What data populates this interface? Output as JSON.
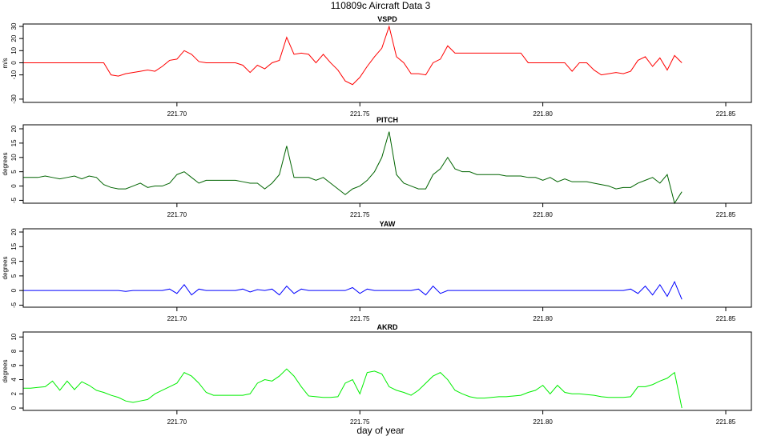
{
  "title": "110809c   Aircraft Data 3",
  "xlabel": "day of year",
  "chart_data": [
    {
      "type": "line",
      "title": "VSPD",
      "ylabel": "m/s",
      "color": "#ff0000",
      "x": [
        221.658,
        221.66,
        221.662,
        221.664,
        221.666,
        221.668,
        221.67,
        221.672,
        221.674,
        221.676,
        221.678,
        221.68,
        221.682,
        221.684,
        221.686,
        221.688,
        221.69,
        221.692,
        221.694,
        221.696,
        221.698,
        221.7,
        221.702,
        221.704,
        221.706,
        221.708,
        221.71,
        221.712,
        221.714,
        221.716,
        221.718,
        221.72,
        221.722,
        221.724,
        221.726,
        221.728,
        221.73,
        221.732,
        221.734,
        221.736,
        221.738,
        221.74,
        221.742,
        221.744,
        221.746,
        221.748,
        221.75,
        221.752,
        221.754,
        221.756,
        221.758,
        221.76,
        221.762,
        221.764,
        221.766,
        221.768,
        221.77,
        221.772,
        221.774,
        221.776,
        221.778,
        221.78,
        221.782,
        221.784,
        221.786,
        221.788,
        221.79,
        221.792,
        221.794,
        221.796,
        221.798,
        221.8,
        221.802,
        221.804,
        221.806,
        221.808,
        221.81,
        221.812,
        221.814,
        221.816,
        221.818,
        221.82,
        221.822,
        221.824,
        221.826,
        221.828,
        221.83,
        221.832,
        221.834,
        221.836,
        221.838
      ],
      "values": [
        0,
        0,
        0,
        0,
        0,
        0,
        0,
        0,
        0,
        0,
        0,
        0,
        -10,
        -11,
        -9,
        -8,
        -7,
        -6,
        -7,
        -3,
        2,
        3,
        10,
        7,
        1,
        0,
        0,
        0,
        0,
        0,
        -2,
        -8,
        -2,
        -5,
        0,
        2,
        21,
        7,
        8,
        7,
        0,
        7,
        0,
        -6,
        -15,
        -18,
        -12,
        -3,
        5,
        12,
        30,
        5,
        0,
        -9,
        -9,
        -10,
        0,
        3,
        14,
        8,
        8,
        8,
        8,
        8,
        8,
        8,
        8,
        8,
        8,
        0,
        0,
        0,
        0,
        0,
        0,
        -7,
        0,
        0,
        -6,
        -10,
        -9,
        -8,
        -9,
        -7,
        2,
        5,
        -3,
        4,
        -6,
        6,
        0
      ],
      "xlim": [
        221.658,
        221.857
      ],
      "xticks": [
        {
          "value": 221.7,
          "label": "221.70"
        },
        221.75,
        {
          "value": 221.8,
          "label": "221.80"
        },
        221.85
      ],
      "ylim": [
        -32.7,
        32
      ],
      "yticks": [
        -30,
        -10,
        0,
        10,
        20,
        30
      ]
    },
    {
      "type": "line",
      "title": "PITCH",
      "ylabel": "degrees",
      "color": "#006400",
      "x": [
        221.658,
        221.66,
        221.662,
        221.664,
        221.666,
        221.668,
        221.67,
        221.672,
        221.674,
        221.676,
        221.678,
        221.68,
        221.682,
        221.684,
        221.686,
        221.688,
        221.69,
        221.692,
        221.694,
        221.696,
        221.698,
        221.7,
        221.702,
        221.704,
        221.706,
        221.708,
        221.71,
        221.712,
        221.714,
        221.716,
        221.718,
        221.72,
        221.722,
        221.724,
        221.726,
        221.728,
        221.73,
        221.732,
        221.734,
        221.736,
        221.738,
        221.74,
        221.742,
        221.744,
        221.746,
        221.748,
        221.75,
        221.752,
        221.754,
        221.756,
        221.758,
        221.76,
        221.762,
        221.764,
        221.766,
        221.768,
        221.77,
        221.772,
        221.774,
        221.776,
        221.778,
        221.78,
        221.782,
        221.784,
        221.786,
        221.788,
        221.79,
        221.792,
        221.794,
        221.796,
        221.798,
        221.8,
        221.802,
        221.804,
        221.806,
        221.808,
        221.81,
        221.812,
        221.814,
        221.816,
        221.818,
        221.82,
        221.822,
        221.824,
        221.826,
        221.828,
        221.83,
        221.832,
        221.834,
        221.836,
        221.838
      ],
      "values": [
        3,
        3,
        3,
        3.5,
        3,
        2.5,
        3,
        3.5,
        2.5,
        3.5,
        3,
        0.5,
        -0.5,
        -1,
        -1,
        0,
        1,
        -0.5,
        0,
        0,
        1,
        4,
        5,
        3,
        1,
        2,
        2,
        2,
        2,
        2,
        1.5,
        1,
        1,
        -1,
        1,
        4,
        14,
        3,
        3,
        3,
        2,
        3,
        1,
        -1,
        -3,
        -1,
        0,
        2,
        5,
        10,
        19,
        4,
        1,
        0,
        -1,
        -1,
        4,
        6,
        10,
        6,
        5,
        5,
        4,
        4,
        4,
        4,
        3.5,
        3.5,
        3.5,
        3,
        3,
        2,
        3,
        1.5,
        2.5,
        1.5,
        1.5,
        1.5,
        1,
        0.5,
        0,
        -1,
        -0.5,
        -0.5,
        1,
        2,
        3,
        1,
        4,
        -6,
        -2
      ],
      "xlim": [
        221.658,
        221.857
      ],
      "xticks": [
        {
          "value": 221.7,
          "label": "221.70"
        },
        221.75,
        {
          "value": 221.8,
          "label": "221.80"
        },
        221.85
      ],
      "ylim": [
        -6,
        21.4
      ],
      "yticks": [
        -5,
        0,
        5,
        10,
        15,
        20
      ]
    },
    {
      "type": "line",
      "title": "YAW",
      "ylabel": "degrees",
      "color": "#0000ff",
      "x": [
        221.658,
        221.66,
        221.662,
        221.664,
        221.666,
        221.668,
        221.67,
        221.672,
        221.674,
        221.676,
        221.678,
        221.68,
        221.682,
        221.684,
        221.686,
        221.688,
        221.69,
        221.692,
        221.694,
        221.696,
        221.698,
        221.7,
        221.702,
        221.704,
        221.706,
        221.708,
        221.71,
        221.712,
        221.714,
        221.716,
        221.718,
        221.72,
        221.722,
        221.724,
        221.726,
        221.728,
        221.73,
        221.732,
        221.734,
        221.736,
        221.738,
        221.74,
        221.742,
        221.744,
        221.746,
        221.748,
        221.75,
        221.752,
        221.754,
        221.756,
        221.758,
        221.76,
        221.762,
        221.764,
        221.766,
        221.768,
        221.77,
        221.772,
        221.774,
        221.776,
        221.778,
        221.78,
        221.782,
        221.784,
        221.786,
        221.788,
        221.79,
        221.792,
        221.794,
        221.796,
        221.798,
        221.8,
        221.802,
        221.804,
        221.806,
        221.808,
        221.81,
        221.812,
        221.814,
        221.816,
        221.818,
        221.82,
        221.822,
        221.824,
        221.826,
        221.828,
        221.83,
        221.832,
        221.834,
        221.836,
        221.838
      ],
      "values": [
        0,
        0,
        0,
        0,
        0,
        0,
        0,
        0,
        0,
        0,
        0,
        0,
        0,
        0,
        -0.3,
        0,
        0,
        0,
        0,
        0,
        0.5,
        -1,
        2,
        -1.5,
        0.5,
        0,
        0,
        0,
        0,
        0,
        0.5,
        -0.5,
        0.3,
        0,
        0.5,
        -1.5,
        1.5,
        -1,
        0.5,
        0,
        0,
        0,
        0,
        0,
        0,
        1,
        -1,
        0.5,
        0,
        0,
        0,
        0,
        0,
        0,
        0.5,
        -1.5,
        1.5,
        -1,
        0,
        0,
        0,
        0,
        0,
        0,
        0,
        0,
        0,
        0,
        0,
        0,
        0,
        0,
        0,
        0,
        0,
        0,
        0,
        0,
        0,
        0,
        0,
        0,
        0,
        0.5,
        -1,
        1.5,
        -1.5,
        2,
        -2,
        3,
        -3
      ],
      "xlim": [
        221.658,
        221.857
      ],
      "xticks": [
        {
          "value": 221.7,
          "label": "221.70"
        },
        221.75,
        {
          "value": 221.8,
          "label": "221.80"
        },
        221.85
      ],
      "ylim": [
        -5.7,
        21.1
      ],
      "yticks": [
        -5,
        0,
        5,
        10,
        15,
        20
      ]
    },
    {
      "type": "line",
      "title": "AKRD",
      "ylabel": "degrees",
      "color": "#00ee00",
      "x": [
        221.658,
        221.66,
        221.662,
        221.664,
        221.666,
        221.668,
        221.67,
        221.672,
        221.674,
        221.676,
        221.678,
        221.68,
        221.682,
        221.684,
        221.686,
        221.688,
        221.69,
        221.692,
        221.694,
        221.696,
        221.698,
        221.7,
        221.702,
        221.704,
        221.706,
        221.708,
        221.71,
        221.712,
        221.714,
        221.716,
        221.718,
        221.72,
        221.722,
        221.724,
        221.726,
        221.728,
        221.73,
        221.732,
        221.734,
        221.736,
        221.738,
        221.74,
        221.742,
        221.744,
        221.746,
        221.748,
        221.75,
        221.752,
        221.754,
        221.756,
        221.758,
        221.76,
        221.762,
        221.764,
        221.766,
        221.768,
        221.77,
        221.772,
        221.774,
        221.776,
        221.778,
        221.78,
        221.782,
        221.784,
        221.786,
        221.788,
        221.79,
        221.792,
        221.794,
        221.796,
        221.798,
        221.8,
        221.802,
        221.804,
        221.806,
        221.808,
        221.81,
        221.812,
        221.814,
        221.816,
        221.818,
        221.82,
        221.822,
        221.824,
        221.826,
        221.828,
        221.83,
        221.832,
        221.834,
        221.836,
        221.838
      ],
      "values": [
        2.8,
        2.8,
        2.9,
        3,
        3.8,
        2.5,
        3.8,
        2.6,
        3.7,
        3.2,
        2.5,
        2.2,
        1.8,
        1.5,
        1,
        0.8,
        1,
        1.2,
        2,
        2.5,
        3,
        3.5,
        5,
        4.5,
        3.5,
        2.2,
        1.8,
        1.8,
        1.8,
        1.8,
        1.8,
        2,
        3.5,
        4,
        3.8,
        4.5,
        5.5,
        4.5,
        3,
        1.7,
        1.6,
        1.5,
        1.5,
        1.6,
        3.5,
        4,
        2,
        5,
        5.2,
        4.8,
        3,
        2.5,
        2.2,
        1.8,
        2.5,
        3.5,
        4.5,
        5,
        4,
        2.5,
        2,
        1.6,
        1.4,
        1.4,
        1.5,
        1.6,
        1.6,
        1.7,
        1.8,
        2.2,
        2.5,
        3.2,
        2,
        3.2,
        2.2,
        2,
        2,
        1.9,
        1.8,
        1.6,
        1.5,
        1.5,
        1.5,
        1.6,
        3,
        3,
        3.3,
        3.8,
        4.2,
        5,
        0
      ],
      "xlim": [
        221.658,
        221.857
      ],
      "xticks": [
        {
          "value": 221.7,
          "label": "221.70"
        },
        221.75,
        {
          "value": 221.8,
          "label": "221.80"
        },
        221.85
      ],
      "ylim": [
        -0.33,
        10.7
      ],
      "yticks": [
        0,
        2,
        4,
        6,
        8,
        10
      ]
    }
  ]
}
